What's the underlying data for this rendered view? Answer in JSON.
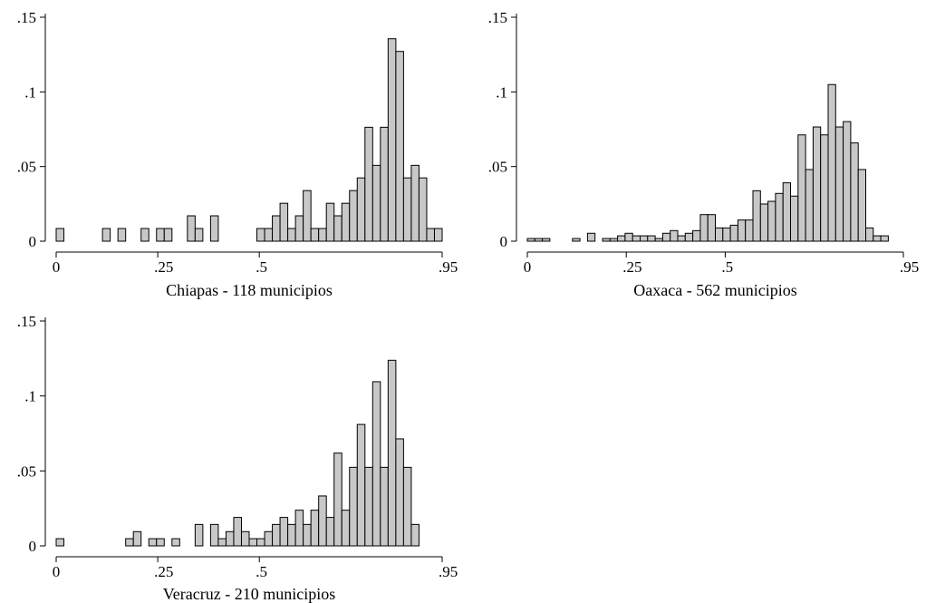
{
  "colors": {
    "bar_fill": "#c8c8c8",
    "bar_stroke": "#000000",
    "axis": "#000000"
  },
  "chart_data": [
    {
      "type": "bar",
      "xlabel": "Chiapas - 118 municipios",
      "ylabel": "",
      "xlim": [
        0,
        0.95
      ],
      "ylim": [
        0,
        0.15
      ],
      "xticks": [
        "0",
        ".25",
        ".5",
        ".95"
      ],
      "xtick_values": [
        0,
        0.25,
        0.5,
        0.95
      ],
      "yticks": [
        "0",
        ".05",
        ".1",
        ".15"
      ],
      "ytick_values": [
        0,
        0.05,
        0.1,
        0.15
      ],
      "bin_width": 0.019,
      "bin_start": 0.0,
      "bin_values": [
        0.0085,
        0,
        0,
        0,
        0,
        0,
        0.0085,
        0,
        0.0085,
        0,
        0,
        0.0085,
        0,
        0.0085,
        0.0085,
        0,
        0,
        0.017,
        0.0085,
        0,
        0.017,
        0,
        0,
        0,
        0,
        0,
        0.0085,
        0.0085,
        0.017,
        0.0254,
        0.0085,
        0.017,
        0.0339,
        0.0085,
        0.0085,
        0.0254,
        0.017,
        0.0254,
        0.0339,
        0.0424,
        0.0763,
        0.0508,
        0.0763,
        0.1356,
        0.1271,
        0.0424,
        0.0508,
        0.0424,
        0.0085,
        0.0085
      ]
    },
    {
      "type": "bar",
      "xlabel": "Oaxaca - 562 municipios",
      "ylabel": "",
      "xlim": [
        0,
        0.95
      ],
      "ylim": [
        0,
        0.15
      ],
      "xticks": [
        "0",
        ".25",
        ".5",
        ".95"
      ],
      "xtick_values": [
        0,
        0.25,
        0.5,
        0.95
      ],
      "yticks": [
        "0",
        ".05",
        ".1",
        ".15"
      ],
      "ytick_values": [
        0,
        0.05,
        0.1,
        0.15
      ],
      "bin_width": 0.019,
      "bin_start": 0.0,
      "bin_values": [
        0.0018,
        0.0018,
        0.0018,
        0,
        0,
        0,
        0.0018,
        0,
        0.0053,
        0,
        0.0018,
        0.0018,
        0.0036,
        0.0053,
        0.0036,
        0.0036,
        0.0036,
        0.0018,
        0.0053,
        0.0071,
        0.0036,
        0.0053,
        0.0071,
        0.0178,
        0.0178,
        0.0089,
        0.0089,
        0.0107,
        0.0142,
        0.0142,
        0.0338,
        0.0249,
        0.0267,
        0.032,
        0.0391,
        0.0302,
        0.0712,
        0.048,
        0.0765,
        0.0712,
        0.1049,
        0.0765,
        0.0801,
        0.0658,
        0.048,
        0.0089,
        0.0036,
        0.0036
      ]
    },
    {
      "type": "bar",
      "xlabel": "Veracruz - 210 municipios",
      "ylabel": "",
      "xlim": [
        0,
        0.95
      ],
      "ylim": [
        0,
        0.15
      ],
      "xticks": [
        "0",
        ".25",
        ".5",
        ".95"
      ],
      "xtick_values": [
        0,
        0.25,
        0.5,
        0.95
      ],
      "yticks": [
        "0",
        ".05",
        ".1",
        ".15"
      ],
      "ytick_values": [
        0,
        0.05,
        0.1,
        0.15
      ],
      "bin_width": 0.019,
      "bin_start": 0.0,
      "bin_values": [
        0.0048,
        0,
        0,
        0,
        0,
        0,
        0,
        0,
        0,
        0.0048,
        0.0095,
        0,
        0.0048,
        0.0048,
        0,
        0.0048,
        0,
        0,
        0.0143,
        0,
        0.0143,
        0.0048,
        0.0095,
        0.019,
        0.0095,
        0.0048,
        0.0048,
        0.0095,
        0.0143,
        0.019,
        0.0143,
        0.0238,
        0.0143,
        0.0238,
        0.0333,
        0.019,
        0.0619,
        0.0238,
        0.0524,
        0.081,
        0.0524,
        0.1095,
        0.0524,
        0.1238,
        0.0714,
        0.0524,
        0.0143
      ]
    }
  ]
}
